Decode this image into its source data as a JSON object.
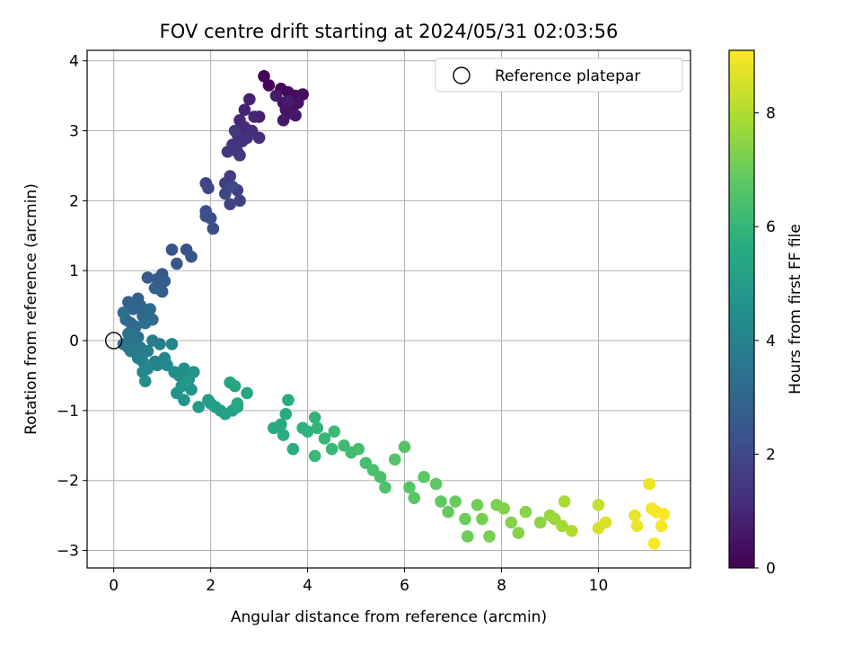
{
  "chart_data": {
    "type": "scatter",
    "title": "FOV centre drift starting at 2024/05/31 02:03:56",
    "xlabel": "Angular distance from reference (arcmin)",
    "ylabel": "Rotation from reference (arcmin)",
    "xlim": [
      -0.55,
      11.9
    ],
    "ylim": [
      -3.25,
      4.15
    ],
    "xticks": [
      0,
      2,
      4,
      6,
      8,
      10
    ],
    "yticks": [
      -3,
      -2,
      -1,
      0,
      1,
      2,
      3,
      4
    ],
    "grid": true,
    "legend": {
      "position": "upper right",
      "entries": [
        "Reference platepar"
      ]
    },
    "reference_point": {
      "name": "Reference platepar",
      "x": 0,
      "y": 0
    },
    "colorbar": {
      "label": "Hours from first FF file",
      "colormap": "viridis",
      "range": [
        0,
        9.1
      ],
      "ticks": [
        0,
        2,
        4,
        6,
        8
      ]
    },
    "series": [
      {
        "color_variable": "hours",
        "points": [
          [
            3.1,
            3.78,
            0.05
          ],
          [
            3.2,
            3.65,
            0.1
          ],
          [
            3.45,
            3.6,
            0.15
          ],
          [
            3.6,
            3.55,
            0.2
          ],
          [
            3.75,
            3.5,
            0.25
          ],
          [
            3.9,
            3.52,
            0.3
          ],
          [
            3.5,
            3.4,
            0.35
          ],
          [
            3.7,
            3.35,
            0.4
          ],
          [
            3.8,
            3.4,
            0.45
          ],
          [
            3.55,
            3.3,
            0.5
          ],
          [
            3.65,
            3.25,
            0.55
          ],
          [
            3.75,
            3.22,
            0.6
          ],
          [
            3.5,
            3.15,
            0.65
          ],
          [
            3.6,
            3.42,
            0.7
          ],
          [
            3.35,
            3.5,
            0.75
          ],
          [
            3.0,
            3.2,
            0.8
          ],
          [
            2.8,
            3.45,
            0.85
          ],
          [
            2.7,
            3.3,
            0.9
          ],
          [
            2.9,
            3.2,
            0.95
          ],
          [
            2.6,
            3.15,
            1.0
          ],
          [
            2.7,
            3.05,
            1.05
          ],
          [
            2.85,
            3.0,
            1.1
          ],
          [
            3.0,
            2.9,
            1.15
          ],
          [
            2.55,
            2.95,
            1.2
          ],
          [
            2.65,
            2.85,
            1.25
          ],
          [
            2.75,
            2.9,
            1.3
          ],
          [
            2.45,
            2.8,
            1.35
          ],
          [
            2.55,
            2.7,
            1.4
          ],
          [
            2.35,
            2.7,
            1.45
          ],
          [
            2.6,
            2.65,
            1.5
          ],
          [
            2.5,
            3.0,
            1.55
          ],
          [
            2.4,
            2.35,
            1.6
          ],
          [
            2.3,
            2.25,
            1.65
          ],
          [
            2.55,
            2.15,
            1.7
          ],
          [
            2.6,
            2.0,
            1.75
          ],
          [
            2.4,
            1.95,
            1.8
          ],
          [
            1.9,
            2.25,
            1.85
          ],
          [
            1.95,
            2.18,
            1.9
          ],
          [
            2.3,
            2.1,
            1.95
          ],
          [
            2.45,
            2.2,
            2.0
          ],
          [
            1.9,
            1.85,
            2.05
          ],
          [
            2.0,
            1.75,
            2.1
          ],
          [
            2.05,
            1.6,
            2.15
          ],
          [
            1.9,
            1.78,
            2.2
          ],
          [
            1.5,
            1.3,
            2.25
          ],
          [
            1.6,
            1.2,
            2.3
          ],
          [
            1.2,
            1.3,
            2.35
          ],
          [
            1.3,
            1.1,
            2.4
          ],
          [
            1.0,
            0.95,
            2.5
          ],
          [
            0.9,
            0.88,
            2.55
          ],
          [
            0.7,
            0.9,
            2.6
          ],
          [
            1.05,
            0.85,
            2.65
          ],
          [
            1.0,
            0.7,
            2.7
          ],
          [
            0.85,
            0.75,
            2.75
          ],
          [
            0.5,
            0.6,
            2.8
          ],
          [
            0.3,
            0.55,
            2.85
          ],
          [
            0.4,
            0.45,
            2.9
          ],
          [
            0.55,
            0.5,
            2.95
          ],
          [
            0.6,
            0.35,
            3.0
          ],
          [
            0.25,
            0.3,
            3.05
          ],
          [
            0.35,
            0.25,
            3.1
          ],
          [
            0.75,
            0.45,
            3.15
          ],
          [
            0.8,
            0.3,
            3.2
          ],
          [
            0.45,
            0.2,
            3.25
          ],
          [
            0.65,
            0.25,
            3.3
          ],
          [
            0.2,
            0.4,
            3.35
          ],
          [
            0.5,
            0.05,
            3.4
          ],
          [
            0.3,
            0.1,
            3.45
          ],
          [
            0.4,
            0.0,
            3.5
          ],
          [
            0.2,
            -0.05,
            3.55
          ],
          [
            0.3,
            -0.1,
            3.6
          ],
          [
            0.35,
            -0.15,
            3.65
          ],
          [
            0.55,
            -0.1,
            3.7
          ],
          [
            0.8,
            0.0,
            3.75
          ],
          [
            0.95,
            -0.05,
            3.8
          ],
          [
            0.7,
            -0.15,
            3.85
          ],
          [
            0.5,
            -0.25,
            3.9
          ],
          [
            0.6,
            -0.3,
            3.95
          ],
          [
            0.85,
            -0.3,
            4.0
          ],
          [
            0.9,
            -0.35,
            4.05
          ],
          [
            1.05,
            -0.25,
            4.1
          ],
          [
            1.2,
            -0.05,
            4.15
          ],
          [
            0.7,
            -0.4,
            4.2
          ],
          [
            1.1,
            -0.35,
            4.25
          ],
          [
            0.6,
            -0.45,
            4.3
          ],
          [
            0.65,
            -0.58,
            4.35
          ],
          [
            1.25,
            -0.45,
            4.4
          ],
          [
            1.35,
            -0.5,
            4.45
          ],
          [
            1.45,
            -0.4,
            4.5
          ],
          [
            1.55,
            -0.55,
            4.55
          ],
          [
            1.4,
            -0.65,
            4.6
          ],
          [
            1.3,
            -0.75,
            4.65
          ],
          [
            1.45,
            -0.85,
            4.7
          ],
          [
            1.6,
            -0.7,
            4.75
          ],
          [
            1.65,
            -0.45,
            4.8
          ],
          [
            1.5,
            -0.6,
            4.85
          ],
          [
            1.75,
            -0.95,
            4.9
          ],
          [
            1.95,
            -0.85,
            4.95
          ],
          [
            2.1,
            -0.95,
            5.0
          ],
          [
            2.0,
            -0.9,
            5.05
          ],
          [
            2.2,
            -1.0,
            5.1
          ],
          [
            2.3,
            -1.05,
            5.15
          ],
          [
            2.45,
            -1.0,
            5.2
          ],
          [
            2.55,
            -0.95,
            5.25
          ],
          [
            2.4,
            -0.6,
            5.3
          ],
          [
            2.5,
            -0.65,
            5.35
          ],
          [
            2.75,
            -0.75,
            5.4
          ],
          [
            2.55,
            -0.9,
            5.45
          ],
          [
            3.3,
            -1.25,
            5.5
          ],
          [
            3.45,
            -1.2,
            5.55
          ],
          [
            3.55,
            -1.05,
            5.6
          ],
          [
            3.6,
            -0.85,
            5.65
          ],
          [
            3.5,
            -1.35,
            5.7
          ],
          [
            3.7,
            -1.55,
            5.75
          ],
          [
            3.9,
            -1.25,
            5.8
          ],
          [
            4.0,
            -1.3,
            5.85
          ],
          [
            4.15,
            -1.1,
            5.9
          ],
          [
            4.2,
            -1.25,
            5.95
          ],
          [
            4.35,
            -1.4,
            6.0
          ],
          [
            4.5,
            -1.55,
            6.05
          ],
          [
            4.15,
            -1.65,
            6.1
          ],
          [
            4.55,
            -1.3,
            6.15
          ],
          [
            4.75,
            -1.5,
            6.2
          ],
          [
            4.9,
            -1.6,
            6.25
          ],
          [
            5.05,
            -1.55,
            6.3
          ],
          [
            5.2,
            -1.75,
            6.35
          ],
          [
            5.35,
            -1.85,
            6.4
          ],
          [
            5.5,
            -1.95,
            6.45
          ],
          [
            5.6,
            -2.1,
            6.5
          ],
          [
            5.8,
            -1.7,
            6.55
          ],
          [
            6.0,
            -1.52,
            6.6
          ],
          [
            6.1,
            -2.1,
            6.65
          ],
          [
            6.2,
            -2.25,
            6.7
          ],
          [
            6.4,
            -1.95,
            6.75
          ],
          [
            6.65,
            -2.05,
            6.8
          ],
          [
            6.75,
            -2.3,
            6.85
          ],
          [
            6.9,
            -2.45,
            6.9
          ],
          [
            7.05,
            -2.3,
            6.95
          ],
          [
            7.25,
            -2.55,
            7.0
          ],
          [
            7.3,
            -2.8,
            7.05
          ],
          [
            7.5,
            -2.35,
            7.1
          ],
          [
            7.6,
            -2.55,
            7.15
          ],
          [
            7.75,
            -2.8,
            7.2
          ],
          [
            7.9,
            -2.35,
            7.25
          ],
          [
            8.05,
            -2.4,
            7.3
          ],
          [
            8.2,
            -2.6,
            7.35
          ],
          [
            8.35,
            -2.75,
            7.4
          ],
          [
            8.5,
            -2.45,
            7.45
          ],
          [
            8.8,
            -2.6,
            7.5
          ],
          [
            9.0,
            -2.5,
            7.6
          ],
          [
            9.1,
            -2.55,
            7.7
          ],
          [
            9.25,
            -2.65,
            7.8
          ],
          [
            9.3,
            -2.3,
            7.9
          ],
          [
            9.45,
            -2.72,
            8.0
          ],
          [
            10.0,
            -2.35,
            8.3
          ],
          [
            10.0,
            -2.68,
            8.5
          ],
          [
            10.15,
            -2.6,
            8.6
          ],
          [
            10.75,
            -2.5,
            8.8
          ],
          [
            10.8,
            -2.65,
            8.85
          ],
          [
            11.05,
            -2.05,
            8.9
          ],
          [
            11.1,
            -2.4,
            8.95
          ],
          [
            11.2,
            -2.45,
            9.0
          ],
          [
            11.3,
            -2.65,
            9.02
          ],
          [
            11.35,
            -2.48,
            9.05
          ],
          [
            11.15,
            -2.9,
            9.08
          ]
        ]
      }
    ]
  }
}
